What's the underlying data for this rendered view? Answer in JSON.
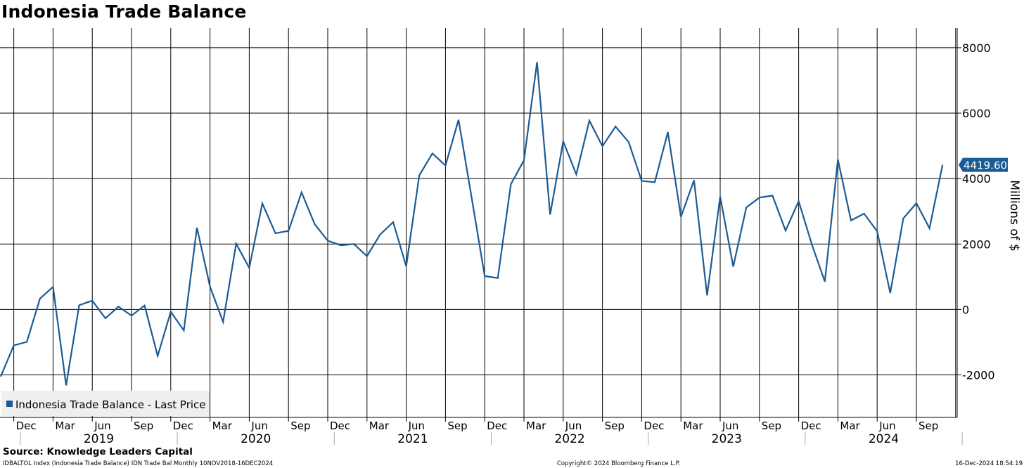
{
  "title": "Indonesia Trade Balance",
  "footer": {
    "source": "Source:  Knowledge Leaders Capital",
    "meta": "IDBALTOL Index (Indonesia Trade Balance) IDN Trade Bal  Monthly 10NOV2018-16DEC2024",
    "copyright": "Copyright© 2024 Bloomberg Finance L.P.",
    "timestamp": "16-Dec-2024 18:54:19"
  },
  "chart_data": {
    "type": "line",
    "title": "Indonesia Trade Balance",
    "ylabel": "Millions of $",
    "ylim": [
      -3300,
      8600
    ],
    "yticks": [
      -2000,
      0,
      2000,
      4000,
      6000,
      8000
    ],
    "grid": true,
    "legend_position": "bottom-left",
    "last_value_label": "4419.60",
    "colors": {
      "line": "#1c5b94",
      "grid": "#000000",
      "label_bg": "#1c5b94"
    },
    "x_start": "2018-11",
    "x_month_labels": [
      "Dec",
      "Mar",
      "Jun",
      "Sep",
      "Dec",
      "Mar",
      "Jun",
      "Sep",
      "Dec",
      "Mar",
      "Jun",
      "Sep",
      "Dec",
      "Mar",
      "Jun",
      "Sep",
      "Dec",
      "Mar",
      "Jun",
      "Sep",
      "Dec",
      "Mar",
      "Jun",
      "Sep"
    ],
    "x_year_labels": [
      "2019",
      "2020",
      "2021",
      "2022",
      "2023",
      "2024"
    ],
    "series": [
      {
        "name": "Indonesia Trade Balance - Last Price",
        "x": [
          "2018-11",
          "2018-12",
          "2019-01",
          "2019-02",
          "2019-03",
          "2019-04",
          "2019-05",
          "2019-06",
          "2019-07",
          "2019-08",
          "2019-09",
          "2019-10",
          "2019-11",
          "2019-12",
          "2020-01",
          "2020-02",
          "2020-03",
          "2020-04",
          "2020-05",
          "2020-06",
          "2020-07",
          "2020-08",
          "2020-09",
          "2020-10",
          "2020-11",
          "2020-12",
          "2021-01",
          "2021-02",
          "2021-03",
          "2021-04",
          "2021-05",
          "2021-06",
          "2021-07",
          "2021-08",
          "2021-09",
          "2021-10",
          "2021-11",
          "2021-12",
          "2022-01",
          "2022-02",
          "2022-03",
          "2022-04",
          "2022-05",
          "2022-06",
          "2022-07",
          "2022-08",
          "2022-09",
          "2022-10",
          "2022-11",
          "2022-12",
          "2023-01",
          "2023-02",
          "2023-03",
          "2023-04",
          "2023-05",
          "2023-06",
          "2023-07",
          "2023-08",
          "2023-09",
          "2023-10",
          "2023-11",
          "2023-12",
          "2024-01",
          "2024-02",
          "2024-03",
          "2024-04",
          "2024-05",
          "2024-06",
          "2024-07",
          "2024-08",
          "2024-09",
          "2024-10",
          "2024-11"
        ],
        "values": [
          -2050,
          -1100,
          -990,
          330,
          690,
          -2320,
          130,
          270,
          -270,
          85,
          -190,
          120,
          -1420,
          -70,
          -640,
          2500,
          700,
          -380,
          2010,
          1270,
          3240,
          2330,
          2400,
          3580,
          2610,
          2100,
          1960,
          2000,
          1630,
          2290,
          2670,
          1320,
          4100,
          4770,
          4400,
          5800,
          3420,
          1020,
          960,
          3830,
          4560,
          7560,
          2900,
          5140,
          4130,
          5770,
          4990,
          5590,
          5120,
          3930,
          3890,
          5420,
          2830,
          3950,
          430,
          3450,
          1310,
          3120,
          3420,
          3480,
          2410,
          3310,
          2000,
          850,
          4580,
          2720,
          2930,
          2390,
          500,
          2780,
          3250,
          2480,
          4419.6
        ]
      }
    ]
  }
}
